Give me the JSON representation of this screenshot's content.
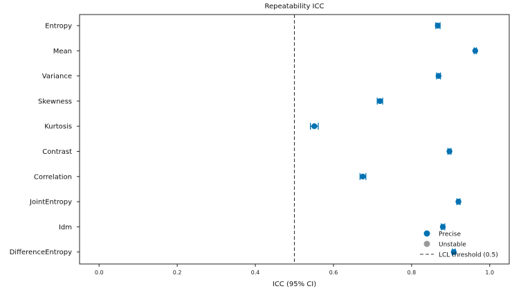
{
  "chart_data": {
    "type": "scatter",
    "title": "Repeatability ICC",
    "xlabel": "ICC (95% CI)",
    "ylabel": "",
    "xlim": [
      -0.05,
      1.05
    ],
    "xticks": [
      0.0,
      0.2,
      0.4,
      0.6,
      0.8,
      1.0
    ],
    "xtick_labels": [
      "0.0",
      "0.2",
      "0.4",
      "0.6",
      "0.8",
      "1.0"
    ],
    "categories": [
      "Entropy",
      "Mean",
      "Variance",
      "Skewness",
      "Kurtosis",
      "Contrast",
      "Correlation",
      "JointEntropy",
      "Idm",
      "DifferenceEntropy"
    ],
    "points": [
      {
        "feature": "Entropy",
        "icc": 0.867,
        "ci_low": 0.862,
        "ci_high": 0.873,
        "status": "Precise"
      },
      {
        "feature": "Mean",
        "icc": 0.963,
        "ci_low": 0.96,
        "ci_high": 0.966,
        "status": "Precise"
      },
      {
        "feature": "Variance",
        "icc": 0.869,
        "ci_low": 0.864,
        "ci_high": 0.874,
        "status": "Precise"
      },
      {
        "feature": "Skewness",
        "icc": 0.719,
        "ci_low": 0.712,
        "ci_high": 0.726,
        "status": "Precise"
      },
      {
        "feature": "Kurtosis",
        "icc": 0.551,
        "ci_low": 0.541,
        "ci_high": 0.561,
        "status": "Precise"
      },
      {
        "feature": "Contrast",
        "icc": 0.897,
        "ci_low": 0.893,
        "ci_high": 0.901,
        "status": "Precise"
      },
      {
        "feature": "Correlation",
        "icc": 0.675,
        "ci_low": 0.668,
        "ci_high": 0.683,
        "status": "Precise"
      },
      {
        "feature": "JointEntropy",
        "icc": 0.92,
        "ci_low": 0.916,
        "ci_high": 0.924,
        "status": "Precise"
      },
      {
        "feature": "Idm",
        "icc": 0.88,
        "ci_low": 0.876,
        "ci_high": 0.885,
        "status": "Precise"
      },
      {
        "feature": "DifferenceEntropy",
        "icc": 0.908,
        "ci_low": 0.904,
        "ci_high": 0.912,
        "status": "Precise"
      }
    ],
    "threshold": {
      "value": 0.5,
      "label": "LCL threshold (0.5)"
    },
    "legend": {
      "placement": "bottom-right",
      "entries": [
        {
          "label": "Precise",
          "color": "#0072b2",
          "kind": "marker"
        },
        {
          "label": "Unstable",
          "color": "#999999",
          "kind": "marker"
        },
        {
          "label": "LCL threshold (0.5)",
          "color": "#333333",
          "kind": "dashed-line"
        }
      ]
    },
    "colors": {
      "precise": "#0072b2",
      "unstable": "#999999",
      "threshold": "#333333"
    },
    "grid": false
  }
}
